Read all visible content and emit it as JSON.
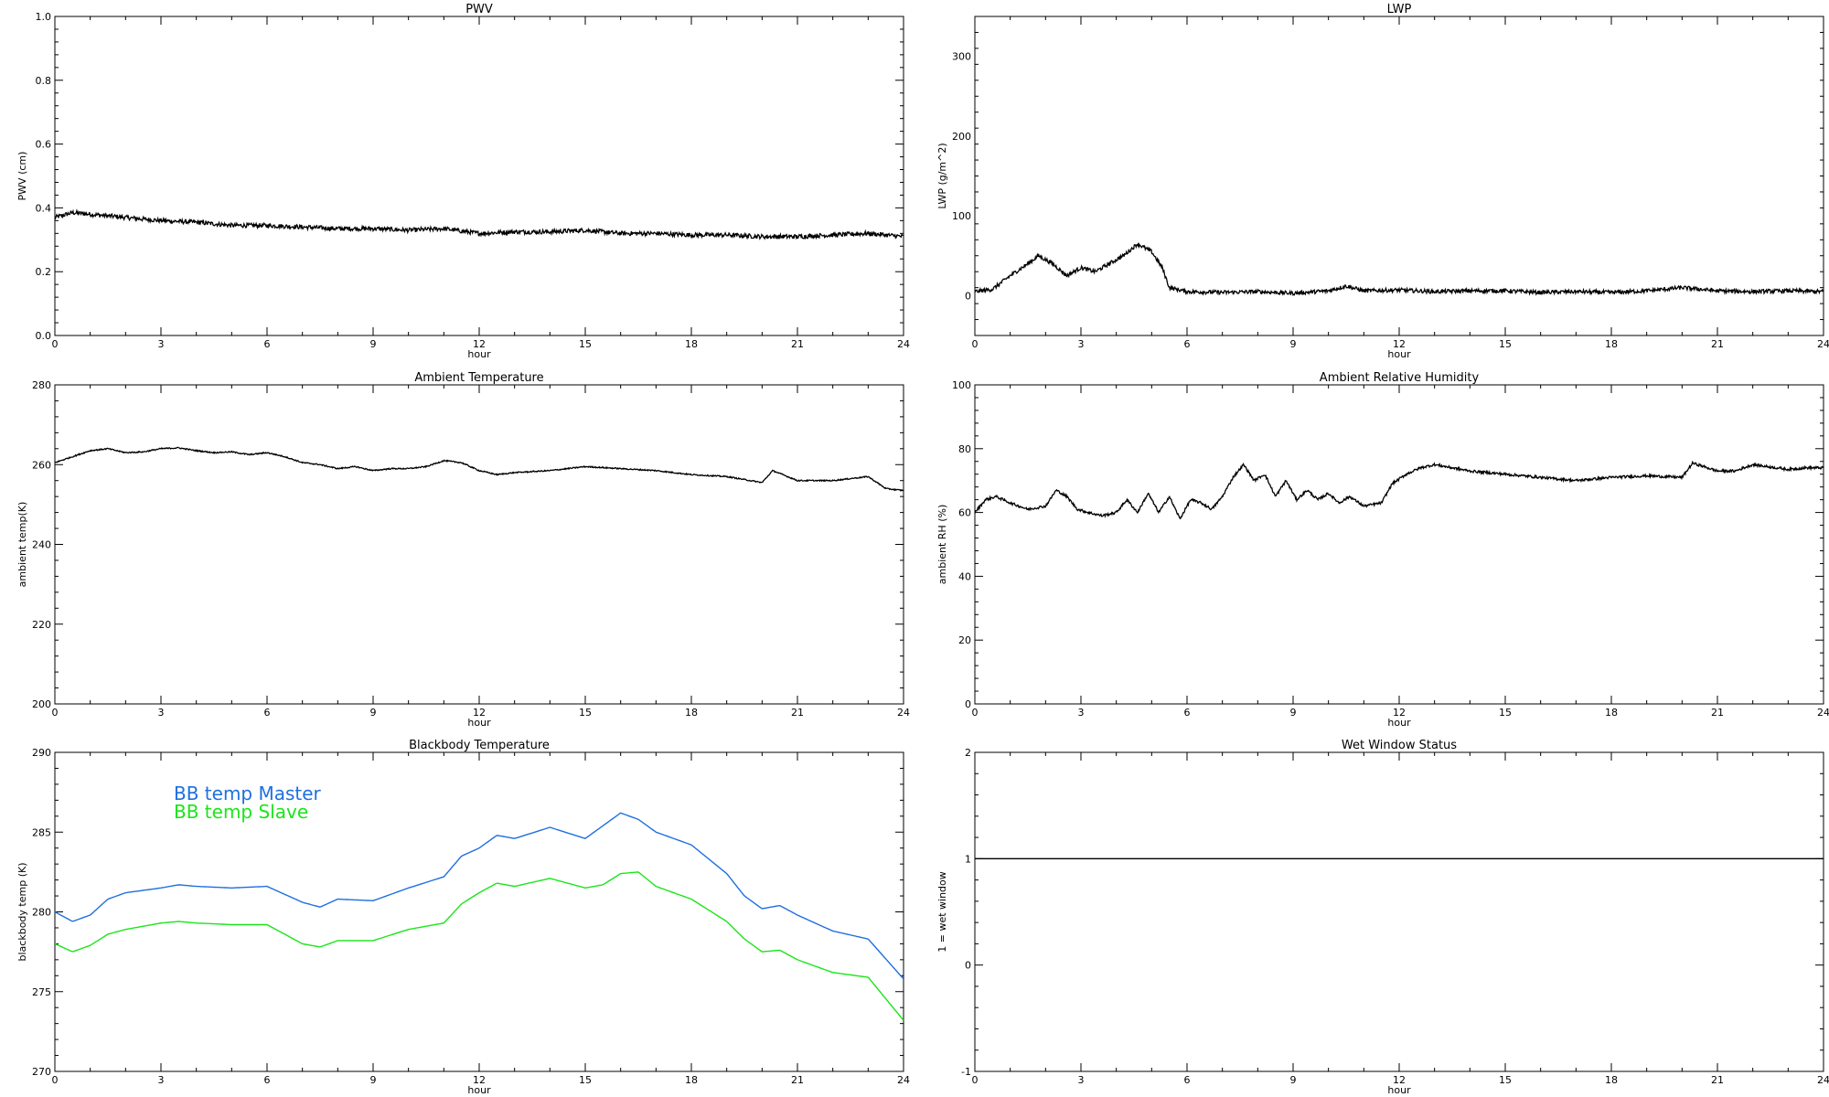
{
  "chart_data": [
    {
      "type": "line",
      "title": "PWV",
      "xlabel": "hour",
      "ylabel": "PWV (cm)",
      "xlim": [
        0,
        24
      ],
      "ylim": [
        0,
        1
      ],
      "xticks": [
        0,
        3,
        6,
        9,
        12,
        15,
        18,
        21,
        24
      ],
      "yticks": [
        0.0,
        0.2,
        0.4,
        0.6,
        0.8,
        1.0
      ],
      "ytick_labels": [
        "0.0",
        "0.2",
        "0.4",
        "0.6",
        "0.8",
        "1.0"
      ],
      "noise": 0.007,
      "series": [
        {
          "color": "#000000",
          "x": [
            0,
            0.5,
            1,
            2,
            3,
            4,
            5,
            6,
            7,
            8,
            9,
            10,
            11,
            12,
            13,
            14,
            15,
            16,
            17,
            18,
            19,
            20,
            21,
            22,
            23,
            24
          ],
          "y": [
            0.37,
            0.385,
            0.38,
            0.37,
            0.36,
            0.355,
            0.345,
            0.345,
            0.34,
            0.335,
            0.335,
            0.33,
            0.335,
            0.32,
            0.325,
            0.325,
            0.33,
            0.32,
            0.32,
            0.315,
            0.315,
            0.31,
            0.31,
            0.315,
            0.32,
            0.31
          ]
        }
      ]
    },
    {
      "type": "line",
      "title": "LWP",
      "xlabel": "hour",
      "ylabel": "LWP (g/m^2)",
      "xlim": [
        0,
        24
      ],
      "ylim": [
        -50,
        350
      ],
      "xticks": [
        0,
        3,
        6,
        9,
        12,
        15,
        18,
        21,
        24
      ],
      "yticks": [
        0,
        100,
        200,
        300
      ],
      "ytick_labels": [
        "0",
        "100",
        "200",
        "300"
      ],
      "noise": 2.5,
      "series": [
        {
          "color": "#000000",
          "x": [
            0,
            0.5,
            1,
            1.5,
            1.8,
            2.2,
            2.6,
            3.0,
            3.4,
            3.8,
            4.2,
            4.6,
            5.0,
            5.3,
            5.5,
            6,
            7,
            8,
            9,
            10,
            10.5,
            11,
            12,
            13,
            14,
            15,
            16,
            17,
            18,
            19,
            20,
            21,
            22,
            23,
            24
          ],
          "y": [
            5,
            8,
            25,
            40,
            50,
            40,
            25,
            35,
            30,
            40,
            50,
            65,
            55,
            35,
            10,
            5,
            4,
            5,
            3,
            6,
            12,
            6,
            7,
            5,
            6,
            6,
            4,
            5,
            4,
            6,
            10,
            6,
            5,
            6,
            5
          ]
        }
      ]
    },
    {
      "type": "line",
      "title": "Ambient Temperature",
      "xlabel": "hour",
      "ylabel": "ambient temp(K)",
      "xlim": [
        0,
        24
      ],
      "ylim": [
        200,
        280
      ],
      "xticks": [
        0,
        3,
        6,
        9,
        12,
        15,
        18,
        21,
        24
      ],
      "yticks": [
        200,
        220,
        240,
        260,
        280
      ],
      "ytick_labels": [
        "200",
        "220",
        "240",
        "260",
        "280"
      ],
      "noise": 0.15,
      "series": [
        {
          "color": "#000000",
          "x": [
            0,
            0.5,
            1,
            1.5,
            2,
            2.5,
            3,
            3.5,
            4,
            4.5,
            5,
            5.5,
            6,
            6.5,
            7,
            7.5,
            8,
            8.5,
            9,
            9.5,
            10,
            10.5,
            11,
            11.5,
            12,
            12.5,
            13,
            14,
            15,
            16,
            17,
            18,
            19,
            20,
            20.3,
            21,
            22,
            23,
            23.5,
            24
          ],
          "y": [
            260.5,
            262,
            263.5,
            264,
            263,
            263.2,
            264,
            264.2,
            263.5,
            263,
            263.2,
            262.5,
            263,
            262,
            260.5,
            260,
            259,
            259.5,
            258.5,
            259,
            259,
            259.5,
            261,
            260.5,
            258.5,
            257.5,
            258,
            258.5,
            259.5,
            259,
            258.5,
            257.5,
            257,
            255.5,
            258.5,
            256,
            256,
            257,
            254,
            253.5
          ]
        }
      ]
    },
    {
      "type": "line",
      "title": "Ambient Relative Humidity",
      "xlabel": "hour",
      "ylabel": "ambient RH (%)",
      "xlim": [
        0,
        24
      ],
      "ylim": [
        0,
        100
      ],
      "xticks": [
        0,
        3,
        6,
        9,
        12,
        15,
        18,
        21,
        24
      ],
      "yticks": [
        0,
        20,
        40,
        60,
        80,
        100
      ],
      "ytick_labels": [
        "0",
        "20",
        "40",
        "60",
        "80",
        "100"
      ],
      "noise": 0.4,
      "series": [
        {
          "color": "#000000",
          "x": [
            0,
            0.3,
            0.6,
            1,
            1.5,
            2,
            2.3,
            2.6,
            2.9,
            3.2,
            3.6,
            4,
            4.3,
            4.6,
            4.9,
            5.2,
            5.5,
            5.8,
            6.1,
            6.4,
            6.7,
            7,
            7.3,
            7.6,
            7.9,
            8.2,
            8.5,
            8.8,
            9.1,
            9.4,
            9.7,
            10,
            10.3,
            10.6,
            11,
            11.5,
            11.8,
            12.2,
            12.6,
            13,
            14,
            15,
            16,
            17,
            18,
            19,
            20,
            20.3,
            21,
            21.5,
            22,
            23,
            23.5,
            24
          ],
          "y": [
            60,
            64,
            65,
            63,
            61,
            62,
            67,
            65,
            61,
            60,
            59,
            60,
            64,
            60,
            66,
            60,
            65,
            58,
            64,
            63,
            61,
            65,
            71,
            75,
            70,
            72,
            65,
            70,
            64,
            67,
            64,
            66,
            63,
            65,
            62,
            63,
            69,
            72,
            74,
            75,
            73,
            72,
            71,
            70,
            71,
            71.5,
            71,
            75.5,
            73,
            73,
            75,
            73.5,
            74,
            74
          ]
        }
      ]
    },
    {
      "type": "line",
      "title": "Blackbody Temperature",
      "xlabel": "hour",
      "ylabel": "blackbody temp (K)",
      "xlim": [
        0,
        24
      ],
      "ylim": [
        270,
        290
      ],
      "xticks": [
        0,
        3,
        6,
        9,
        12,
        15,
        18,
        21,
        24
      ],
      "yticks": [
        270,
        275,
        280,
        285,
        290
      ],
      "ytick_labels": [
        "270",
        "275",
        "280",
        "285",
        "290"
      ],
      "noise": 0,
      "legend": [
        {
          "label": "BB temp Master",
          "color": "#1f6fe0"
        },
        {
          "label": "BB temp Slave",
          "color": "#19e619"
        }
      ],
      "series": [
        {
          "name": "BB temp Master",
          "color": "#1f6fe0",
          "x": [
            0,
            0.5,
            1,
            1.5,
            2,
            3,
            3.5,
            4,
            5,
            6,
            7,
            7.5,
            8,
            9,
            10,
            11,
            11.5,
            12,
            12.5,
            13,
            14,
            15,
            15.5,
            16,
            16.5,
            17,
            18,
            19,
            19.5,
            20,
            20.5,
            21,
            22,
            23,
            24
          ],
          "y": [
            280,
            279.4,
            279.8,
            280.8,
            281.2,
            281.5,
            281.7,
            281.6,
            281.5,
            281.6,
            280.6,
            280.3,
            280.8,
            280.7,
            281.5,
            282.2,
            283.5,
            284.0,
            284.8,
            284.6,
            285.3,
            284.6,
            285.4,
            286.2,
            285.8,
            285.0,
            284.2,
            282.4,
            281.0,
            280.2,
            280.4,
            279.8,
            278.8,
            278.3,
            275.8
          ]
        },
        {
          "name": "BB temp Slave",
          "color": "#19e619",
          "x": [
            0,
            0.5,
            1,
            1.5,
            2,
            3,
            3.5,
            4,
            5,
            6,
            7,
            7.5,
            8,
            9,
            10,
            11,
            11.5,
            12,
            12.5,
            13,
            14,
            15,
            15.5,
            16,
            16.5,
            17,
            18,
            19,
            19.5,
            20,
            20.5,
            21,
            22,
            23,
            24
          ],
          "y": [
            278,
            277.5,
            277.9,
            278.6,
            278.9,
            279.3,
            279.4,
            279.3,
            279.2,
            279.2,
            278.0,
            277.8,
            278.2,
            278.2,
            278.9,
            279.3,
            280.5,
            281.2,
            281.8,
            281.6,
            282.1,
            281.5,
            281.7,
            282.4,
            282.5,
            281.6,
            280.8,
            279.4,
            278.3,
            277.5,
            277.6,
            277.0,
            276.2,
            275.9,
            273.2
          ]
        }
      ]
    },
    {
      "type": "line",
      "title": "Wet Window Status",
      "xlabel": "hour",
      "ylabel": "1 = wet window",
      "xlim": [
        0,
        24
      ],
      "ylim": [
        -1,
        2
      ],
      "xticks": [
        0,
        3,
        6,
        9,
        12,
        15,
        18,
        21,
        24
      ],
      "yticks": [
        -1,
        0,
        1,
        2
      ],
      "ytick_labels": [
        "-1",
        "0",
        "1",
        "2"
      ],
      "noise": 0,
      "series": [
        {
          "color": "#000000",
          "x": [
            0,
            24
          ],
          "y": [
            1,
            1
          ]
        }
      ]
    }
  ]
}
